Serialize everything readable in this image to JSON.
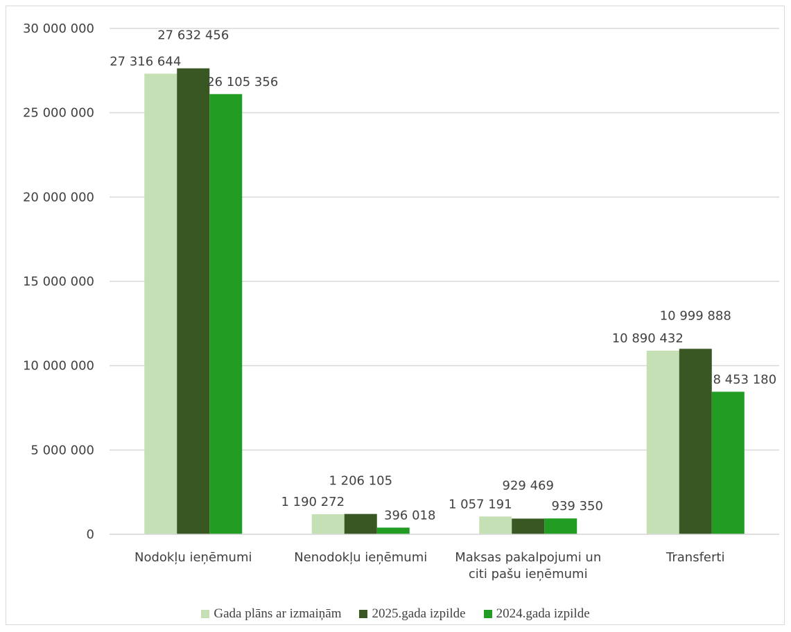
{
  "chart_data": {
    "type": "bar",
    "categories": [
      [
        "Nodokļu ieņēmumi"
      ],
      [
        "Nenodokļu ieņēmumi"
      ],
      [
        "Maksas pakalpojumi un",
        "citi pašu ieņēmumi"
      ],
      [
        "Transferti"
      ]
    ],
    "series": [
      {
        "name": "Gada plāns ar izmaiņām",
        "color": "#c5e0b4",
        "values": [
          27316644,
          1190272,
          1057191,
          10890432
        ],
        "labels": [
          "27 316 644",
          "1 190 272",
          "1 057 191",
          "10 890 432"
        ]
      },
      {
        "name": "2025.gada izpilde",
        "color": "#385723",
        "values": [
          27632456,
          1206105,
          929469,
          10999888
        ],
        "labels": [
          "27 632 456",
          "1 206 105",
          "929 469",
          "10 999 888"
        ]
      },
      {
        "name": "2024.gada izpilde",
        "color": "#229c22",
        "values": [
          26105356,
          396018,
          939350,
          8453180
        ],
        "labels": [
          "26 105 356",
          "396 018",
          "939 350",
          "8 453 180"
        ]
      }
    ],
    "ylim": [
      0,
      30000000
    ],
    "yticks": [
      0,
      5000000,
      10000000,
      15000000,
      20000000,
      25000000,
      30000000
    ],
    "ytick_labels": [
      "0",
      "5 000 000",
      "10 000 000",
      "15 000 000",
      "20 000 000",
      "25 000 000",
      "30 000 000"
    ],
    "grid": true,
    "legend_position": "bottom",
    "title": "",
    "xlabel": "",
    "ylabel": ""
  }
}
